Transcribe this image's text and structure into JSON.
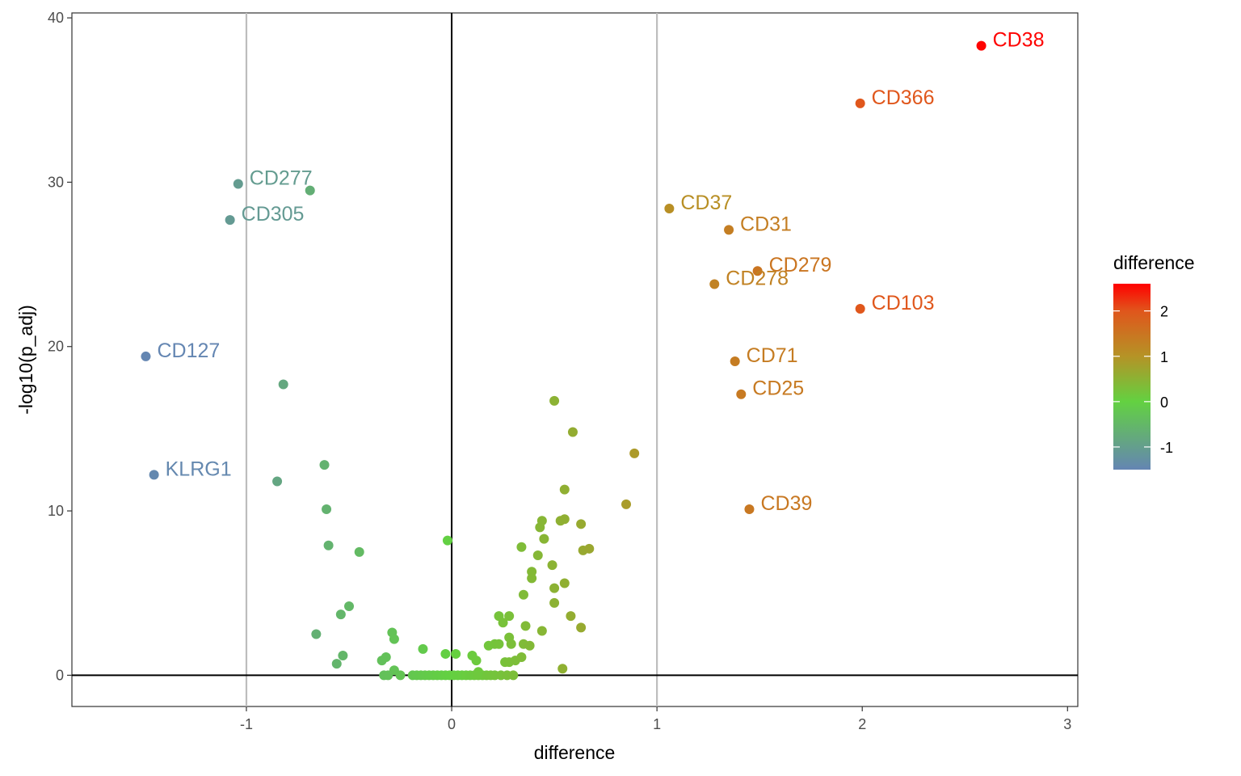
{
  "chart_data": {
    "type": "scatter",
    "xlabel": "difference",
    "ylabel": "-log10(p_adj)",
    "xlim": [
      -1.85,
      3.05
    ],
    "ylim": [
      -1.9,
      40.3
    ],
    "xticks": [
      -1,
      0,
      1,
      2,
      3
    ],
    "yticks": [
      0,
      10,
      20,
      30,
      40
    ],
    "xtick_labels": [
      "-1",
      "0",
      "1",
      "2",
      "3"
    ],
    "ytick_labels": [
      "0",
      "10",
      "20",
      "30",
      "40"
    ],
    "reference_lines": {
      "vertical": [
        -1,
        1
      ],
      "vertical_zero": 0,
      "horizontal_zero": 0
    },
    "grid": false,
    "color_scale": {
      "title": "difference",
      "range": [
        -1.5,
        2.6
      ],
      "ticks": [
        2,
        1,
        0,
        -1
      ],
      "tick_labels": [
        "2",
        "1",
        "0",
        "-1"
      ],
      "stops": [
        {
          "value": -1.5,
          "color": "#6485b3"
        },
        {
          "value": 0,
          "color": "#63d141"
        },
        {
          "value": 1,
          "color": "#b59326"
        },
        {
          "value": 2,
          "color": "#e0561c"
        },
        {
          "value": 2.6,
          "color": "#ff0000"
        }
      ],
      "legend_position": "right"
    },
    "labeled_points": [
      {
        "label": "CD38",
        "x": 2.58,
        "y": 38.3
      },
      {
        "label": "CD366",
        "x": 1.99,
        "y": 34.8
      },
      {
        "label": "CD277",
        "x": -1.04,
        "y": 29.9
      },
      {
        "label": "CD305",
        "x": -1.08,
        "y": 27.7
      },
      {
        "label": "CD37",
        "x": 1.06,
        "y": 28.4
      },
      {
        "label": "CD31",
        "x": 1.35,
        "y": 27.1
      },
      {
        "label": "CD279",
        "x": 1.49,
        "y": 24.6
      },
      {
        "label": "CD278",
        "x": 1.28,
        "y": 23.8
      },
      {
        "label": "CD103",
        "x": 1.99,
        "y": 22.3
      },
      {
        "label": "CD127",
        "x": -1.49,
        "y": 19.4
      },
      {
        "label": "CD71",
        "x": 1.38,
        "y": 19.1
      },
      {
        "label": "CD25",
        "x": 1.41,
        "y": 17.1
      },
      {
        "label": "KLRG1",
        "x": -1.45,
        "y": 12.2
      },
      {
        "label": "CD39",
        "x": 1.45,
        "y": 10.1
      }
    ],
    "points": [
      {
        "x": -0.69,
        "y": 29.5
      },
      {
        "x": -0.82,
        "y": 17.7
      },
      {
        "x": -0.62,
        "y": 12.8
      },
      {
        "x": -0.85,
        "y": 11.8
      },
      {
        "x": -0.61,
        "y": 10.1
      },
      {
        "x": -0.6,
        "y": 7.9
      },
      {
        "x": -0.45,
        "y": 7.5
      },
      {
        "x": -0.5,
        "y": 4.2
      },
      {
        "x": -0.54,
        "y": 3.7
      },
      {
        "x": -0.66,
        "y": 2.5
      },
      {
        "x": -0.53,
        "y": 1.2
      },
      {
        "x": -0.56,
        "y": 0.7
      },
      {
        "x": -0.02,
        "y": 8.2
      },
      {
        "x": -0.14,
        "y": 1.6
      },
      {
        "x": -0.03,
        "y": 1.3
      },
      {
        "x": 0.02,
        "y": 1.3
      },
      {
        "x": -0.29,
        "y": 2.6
      },
      {
        "x": -0.28,
        "y": 2.2
      },
      {
        "x": -0.34,
        "y": 0.9
      },
      {
        "x": -0.32,
        "y": 1.1
      },
      {
        "x": -0.28,
        "y": 0.3
      },
      {
        "x": -0.33,
        "y": 0.0
      },
      {
        "x": -0.31,
        "y": 0.0
      },
      {
        "x": -0.25,
        "y": 0.0
      },
      {
        "x": -0.19,
        "y": 0.0
      },
      {
        "x": -0.17,
        "y": 0.0
      },
      {
        "x": -0.15,
        "y": 0.0
      },
      {
        "x": -0.13,
        "y": 0.0
      },
      {
        "x": -0.11,
        "y": 0.0
      },
      {
        "x": -0.09,
        "y": 0.0
      },
      {
        "x": -0.07,
        "y": 0.0
      },
      {
        "x": -0.05,
        "y": 0.0
      },
      {
        "x": -0.03,
        "y": 0.0
      },
      {
        "x": -0.01,
        "y": 0.0
      },
      {
        "x": 0.01,
        "y": 0.0
      },
      {
        "x": 0.03,
        "y": 0.0
      },
      {
        "x": 0.05,
        "y": 0.0
      },
      {
        "x": 0.07,
        "y": 0.0
      },
      {
        "x": 0.09,
        "y": 0.0
      },
      {
        "x": 0.11,
        "y": 0.0
      },
      {
        "x": 0.13,
        "y": 0.0
      },
      {
        "x": 0.15,
        "y": 0.0
      },
      {
        "x": 0.17,
        "y": 0.0
      },
      {
        "x": 0.19,
        "y": 0.0
      },
      {
        "x": 0.21,
        "y": 0.0
      },
      {
        "x": 0.24,
        "y": 0.0
      },
      {
        "x": 0.27,
        "y": 0.0
      },
      {
        "x": 0.3,
        "y": 0.0
      },
      {
        "x": 0.1,
        "y": 1.2
      },
      {
        "x": 0.12,
        "y": 0.9
      },
      {
        "x": 0.13,
        "y": 0.2
      },
      {
        "x": 0.18,
        "y": 1.8
      },
      {
        "x": 0.21,
        "y": 1.9
      },
      {
        "x": 0.23,
        "y": 1.9
      },
      {
        "x": 0.23,
        "y": 3.6
      },
      {
        "x": 0.25,
        "y": 3.2
      },
      {
        "x": 0.28,
        "y": 3.6
      },
      {
        "x": 0.28,
        "y": 2.3
      },
      {
        "x": 0.29,
        "y": 1.9
      },
      {
        "x": 0.26,
        "y": 0.8
      },
      {
        "x": 0.28,
        "y": 0.8
      },
      {
        "x": 0.31,
        "y": 0.9
      },
      {
        "x": 0.34,
        "y": 1.1
      },
      {
        "x": 0.35,
        "y": 1.9
      },
      {
        "x": 0.38,
        "y": 1.8
      },
      {
        "x": 0.36,
        "y": 3.0
      },
      {
        "x": 0.35,
        "y": 4.9
      },
      {
        "x": 0.39,
        "y": 5.9
      },
      {
        "x": 0.39,
        "y": 6.3
      },
      {
        "x": 0.34,
        "y": 7.8
      },
      {
        "x": 0.42,
        "y": 7.3
      },
      {
        "x": 0.45,
        "y": 8.3
      },
      {
        "x": 0.44,
        "y": 2.7
      },
      {
        "x": 0.43,
        "y": 9.0
      },
      {
        "x": 0.44,
        "y": 9.4
      },
      {
        "x": 0.5,
        "y": 16.7
      },
      {
        "x": 0.59,
        "y": 14.8
      },
      {
        "x": 0.55,
        "y": 11.3
      },
      {
        "x": 0.53,
        "y": 9.4
      },
      {
        "x": 0.55,
        "y": 9.5
      },
      {
        "x": 0.63,
        "y": 9.2
      },
      {
        "x": 0.49,
        "y": 6.7
      },
      {
        "x": 0.5,
        "y": 5.3
      },
      {
        "x": 0.55,
        "y": 5.6
      },
      {
        "x": 0.5,
        "y": 4.4
      },
      {
        "x": 0.58,
        "y": 3.6
      },
      {
        "x": 0.63,
        "y": 2.9
      },
      {
        "x": 0.54,
        "y": 0.4
      },
      {
        "x": 0.64,
        "y": 7.6
      },
      {
        "x": 0.67,
        "y": 7.7
      },
      {
        "x": 0.89,
        "y": 13.5
      },
      {
        "x": 0.85,
        "y": 10.4
      }
    ]
  }
}
